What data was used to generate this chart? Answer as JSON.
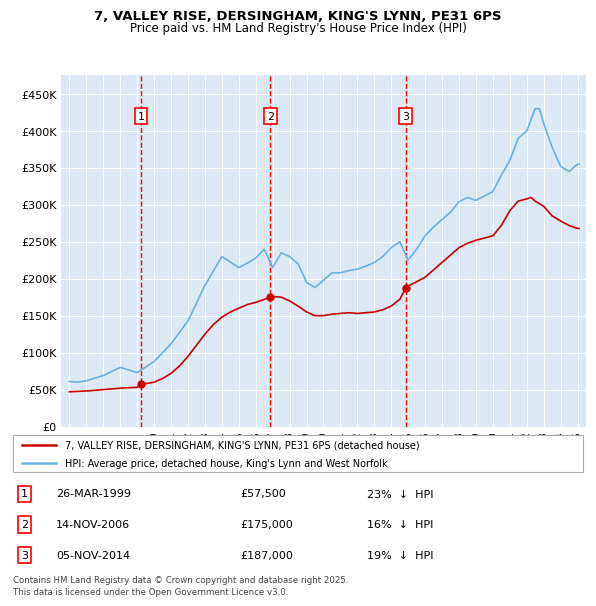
{
  "title": "7, VALLEY RISE, DERSINGHAM, KING'S LYNN, PE31 6PS",
  "subtitle": "Price paid vs. HM Land Registry's House Price Index (HPI)",
  "legend_line1": "7, VALLEY RISE, DERSINGHAM, KING'S LYNN, PE31 6PS (detached house)",
  "legend_line2": "HPI: Average price, detached house, King's Lynn and West Norfolk",
  "footer": "Contains HM Land Registry data © Crown copyright and database right 2025.\nThis data is licensed under the Open Government Licence v3.0.",
  "sales": [
    {
      "num": 1,
      "date": "26-MAR-1999",
      "price": 57500,
      "pct": "23%",
      "dir": "↓",
      "year_x": 1999.23
    },
    {
      "num": 2,
      "date": "14-NOV-2006",
      "price": 175000,
      "pct": "16%",
      "dir": "↓",
      "year_x": 2006.87
    },
    {
      "num": 3,
      "date": "05-NOV-2014",
      "price": 187000,
      "pct": "19%",
      "dir": "↓",
      "year_x": 2014.85
    }
  ],
  "sale_points": [
    [
      1999.23,
      57500
    ],
    [
      2006.87,
      175000
    ],
    [
      2014.85,
      187000
    ]
  ],
  "hpi_color": "#6ab0e0",
  "price_color": "#cc0000",
  "vline_color": "#ff0000",
  "plot_bg": "#dce9f5",
  "grid_color": "#ffffff",
  "ylim": [
    0,
    475000
  ],
  "yticks": [
    0,
    50000,
    100000,
    150000,
    200000,
    250000,
    300000,
    350000,
    400000,
    450000
  ],
  "ytick_labels": [
    "£0",
    "£50K",
    "£100K",
    "£150K",
    "£200K",
    "£250K",
    "£300K",
    "£350K",
    "£400K",
    "£450K"
  ],
  "xlim": [
    1994.5,
    2025.5
  ]
}
